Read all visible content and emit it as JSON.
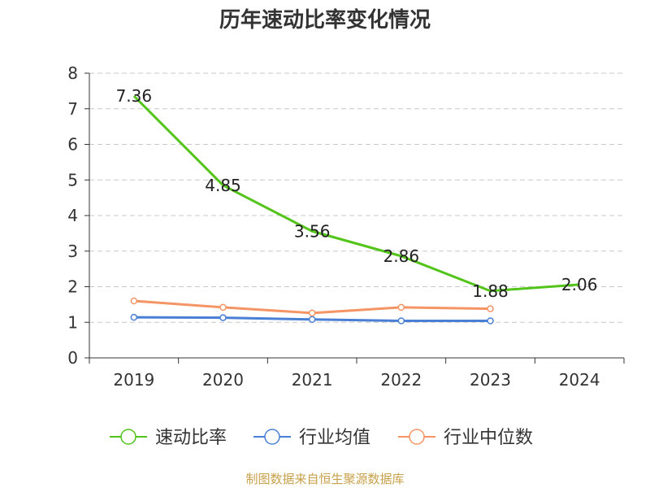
{
  "chart_data": {
    "type": "line",
    "title": "历年速动比率变化情况",
    "categories": [
      "2019",
      "2020",
      "2021",
      "2022",
      "2023",
      "2024"
    ],
    "ylim": [
      0,
      8
    ],
    "yticks": [
      0,
      1,
      2,
      3,
      4,
      5,
      6,
      7,
      8
    ],
    "grid": true,
    "legend_position": "bottom",
    "series": [
      {
        "name": "速动比率",
        "color": "#52c41a",
        "values": [
          7.36,
          4.85,
          3.56,
          2.86,
          1.88,
          2.06
        ],
        "value_labels": [
          "7.36",
          "4.85",
          "3.56",
          "2.86",
          "1.88",
          "2.06"
        ]
      },
      {
        "name": "行业均值",
        "color": "#4a7fd6",
        "values": [
          1.14,
          1.13,
          1.08,
          1.04,
          1.04,
          null
        ]
      },
      {
        "name": "行业中位数",
        "color": "#f59565",
        "values": [
          1.6,
          1.42,
          1.26,
          1.42,
          1.38,
          null
        ]
      }
    ]
  },
  "footer": {
    "source": "制图数据来自恒生聚源数据库"
  }
}
